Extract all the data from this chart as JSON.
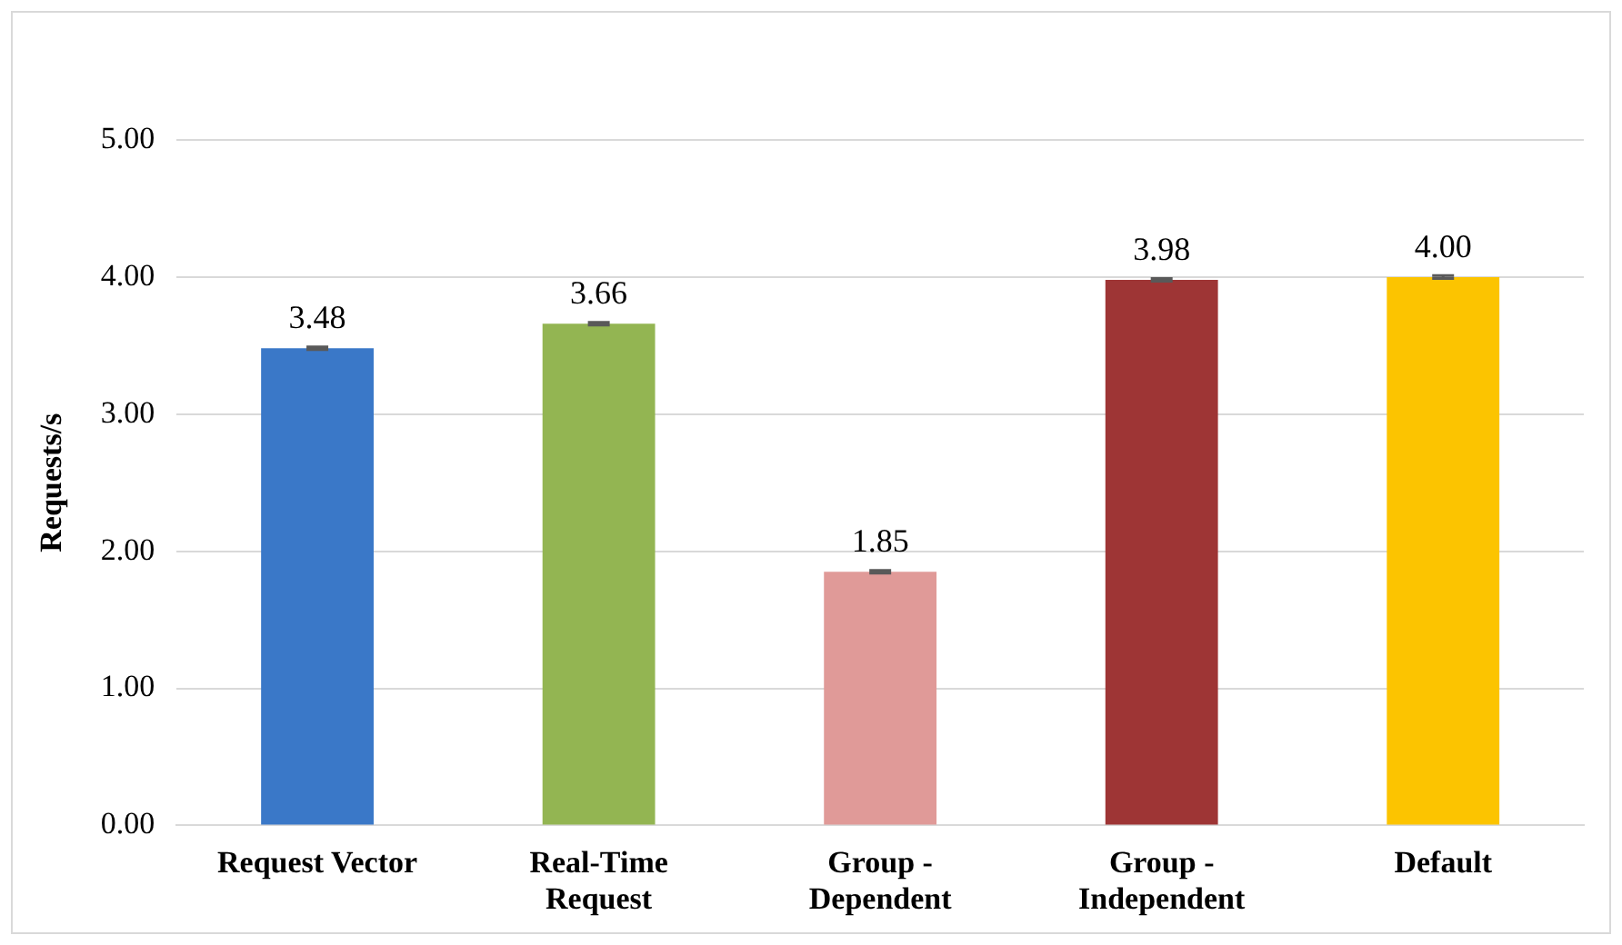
{
  "chart_data": {
    "type": "bar",
    "ylabel": "Requests/s",
    "categories": [
      "Request Vector",
      "Real-Time Request",
      "Group - Dependent",
      "Group - Independent",
      "Default"
    ],
    "values": [
      3.48,
      3.66,
      1.85,
      3.98,
      4.0
    ],
    "colors": [
      "#3a78c8",
      "#93b552",
      "#e09a98",
      "#9e3535",
      "#fcc400"
    ],
    "errors": [
      0.01,
      0.01,
      0.01,
      0.01,
      0.01
    ],
    "value_labels": [
      "3.48",
      "3.66",
      "1.85",
      "3.98",
      "4.00"
    ],
    "ylim": [
      0,
      5
    ],
    "yticks": [
      {
        "value": 0,
        "label": "0.00"
      },
      {
        "value": 1,
        "label": "1.00"
      },
      {
        "value": 2,
        "label": "2.00"
      },
      {
        "value": 3,
        "label": "3.00"
      },
      {
        "value": 4,
        "label": "4.00"
      },
      {
        "value": 5,
        "label": "5.00"
      }
    ],
    "grid": "y",
    "legend": false
  }
}
